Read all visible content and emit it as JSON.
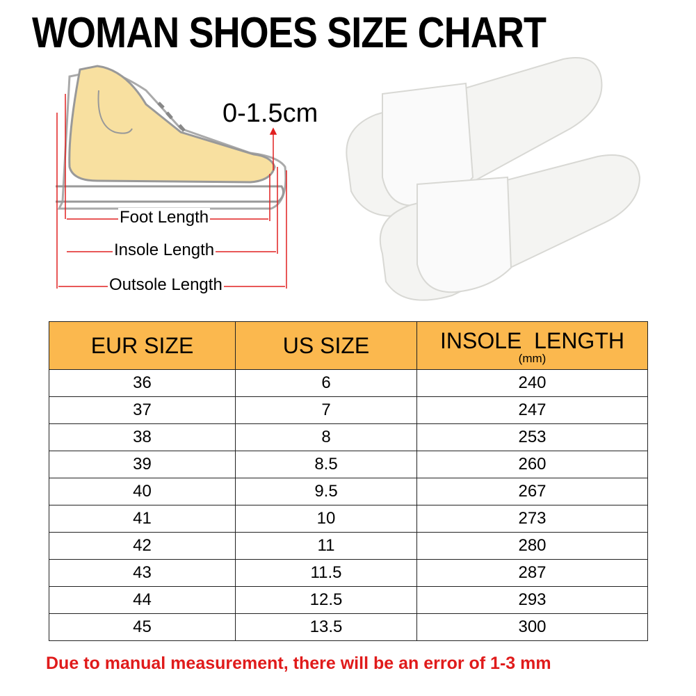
{
  "title": "WOMAN SHOES SIZE CHART",
  "diagram": {
    "gap_label": "0-1.5cm",
    "foot_length": "Foot Length",
    "insole_length": "Insole Length",
    "outsole_length": "Outsole Length"
  },
  "table": {
    "headers": [
      "EUR SIZE",
      "US SIZE",
      "INSOLE  LENGTH"
    ],
    "unit": "(mm)",
    "rows": [
      [
        "36",
        "6",
        "240"
      ],
      [
        "37",
        "7",
        "247"
      ],
      [
        "38",
        "8",
        "253"
      ],
      [
        "39",
        "8.5",
        "260"
      ],
      [
        "40",
        "9.5",
        "267"
      ],
      [
        "41",
        "10",
        "273"
      ],
      [
        "42",
        "11",
        "280"
      ],
      [
        "43",
        "11.5",
        "287"
      ],
      [
        "44",
        "12.5",
        "293"
      ],
      [
        "45",
        "13.5",
        "300"
      ]
    ]
  },
  "note": "Due to manual measurement, there will be an error of 1-3  mm",
  "colors": {
    "header": "#fbb84e",
    "note": "#e01b1b",
    "arrows": "#e02020",
    "foot": "#f8e0a0"
  }
}
